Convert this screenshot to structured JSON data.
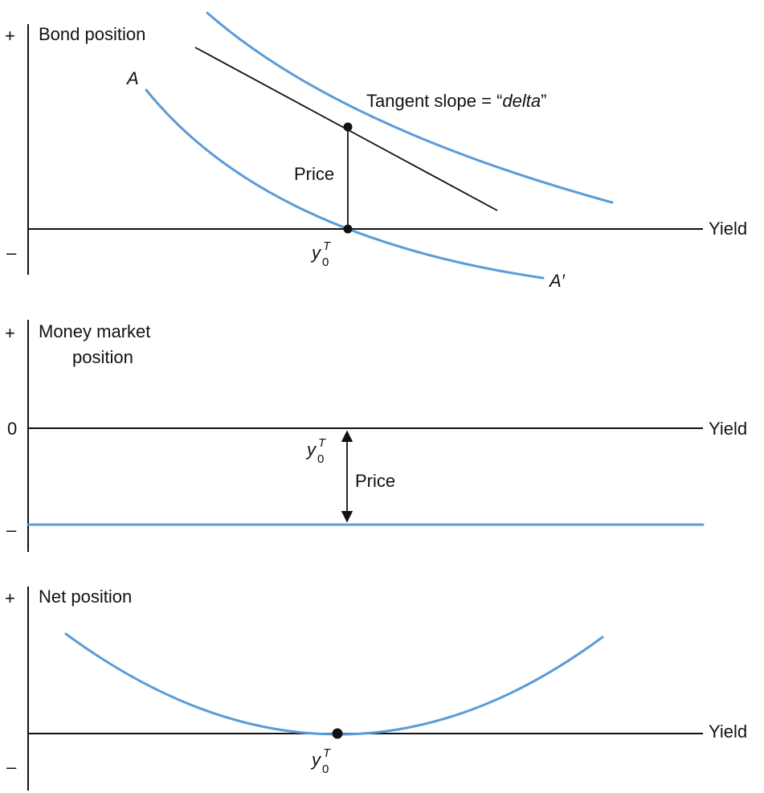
{
  "colors": {
    "curve": "#5b9bd8",
    "ink": "#111111",
    "background": "#ffffff"
  },
  "panels": {
    "bond": {
      "title": "Bond position",
      "plus": "+",
      "minus": "–",
      "axis_label": "Yield",
      "curve_start_label": "A",
      "curve_end_label": "A′",
      "tangent_label_prefix": "Tangent slope = “",
      "tangent_label_italic": "delta",
      "tangent_label_suffix": "”",
      "price_label": "Price",
      "yield_symbol": "y",
      "yield_sup": "T",
      "yield_sub": "0"
    },
    "money": {
      "title_line1": "Money market",
      "title_line2": "position",
      "plus": "+",
      "zero": "0",
      "minus": "–",
      "axis_label": "Yield",
      "price_label": "Price",
      "yield_symbol": "y",
      "yield_sup": "T",
      "yield_sub": "0"
    },
    "net": {
      "title": "Net position",
      "plus": "+",
      "minus": "–",
      "axis_label": "Yield",
      "yield_symbol": "y",
      "yield_sup": "T",
      "yield_sub": "0"
    }
  }
}
